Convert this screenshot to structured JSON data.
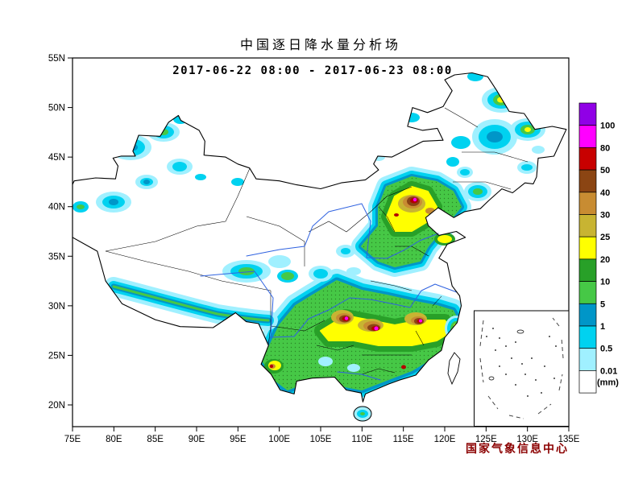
{
  "title": "中国逐日降水量分析场",
  "date_range": "2017-06-22 08:00 - 2017-06-23 08:00",
  "attribution": "国家气象信息中心",
  "axes": {
    "x_ticks": [
      "75E",
      "80E",
      "85E",
      "90E",
      "95E",
      "100E",
      "105E",
      "110E",
      "115E",
      "120E",
      "125E",
      "130E",
      "135E"
    ],
    "y_ticks": [
      "55N",
      "50N",
      "45N",
      "40N",
      "35N",
      "30N",
      "25N",
      "20N"
    ]
  },
  "colorbar": {
    "unit_label": "(mm)",
    "boundary_labels_top_to_bottom": [
      "100",
      "80",
      "50",
      "40",
      "30",
      "25",
      "20",
      "10",
      "5",
      "1",
      "0.5",
      "0.01"
    ],
    "segment_colors_top_to_bottom": [
      "#9000E6",
      "#FF00FF",
      "#C80000",
      "#8B4513",
      "#C88C32",
      "#C8B432",
      "#FFFF00",
      "#28A028",
      "#46C846",
      "#0096C8",
      "#00D2F0",
      "#A0F0FF",
      "#FFFFFF"
    ]
  },
  "chart_data": {
    "type": "heatmap",
    "title": "中国逐日降水量分析场",
    "period": "2017-06-22 08:00 - 2017-06-23 08:00",
    "region": "China",
    "lon_range": [
      75,
      135
    ],
    "lat_range": [
      20,
      55
    ],
    "unit": "mm",
    "thresholds": [
      0.01,
      0.5,
      1,
      5,
      10,
      20,
      25,
      30,
      40,
      50,
      80,
      100
    ],
    "legend_position": "right",
    "notes": "24h precipitation analysis; heaviest rain (40-100+ mm, brown/red/magenta) over North China near 40N,116E and along a SW-NE band 26-29N across Guizhou-Hunan-Jiangxi; broad 5-20 mm (green/yellow) over South and North China; light rain (0.01-5 mm, cyan) over Xinjiang, Tibet and Northeast China."
  }
}
